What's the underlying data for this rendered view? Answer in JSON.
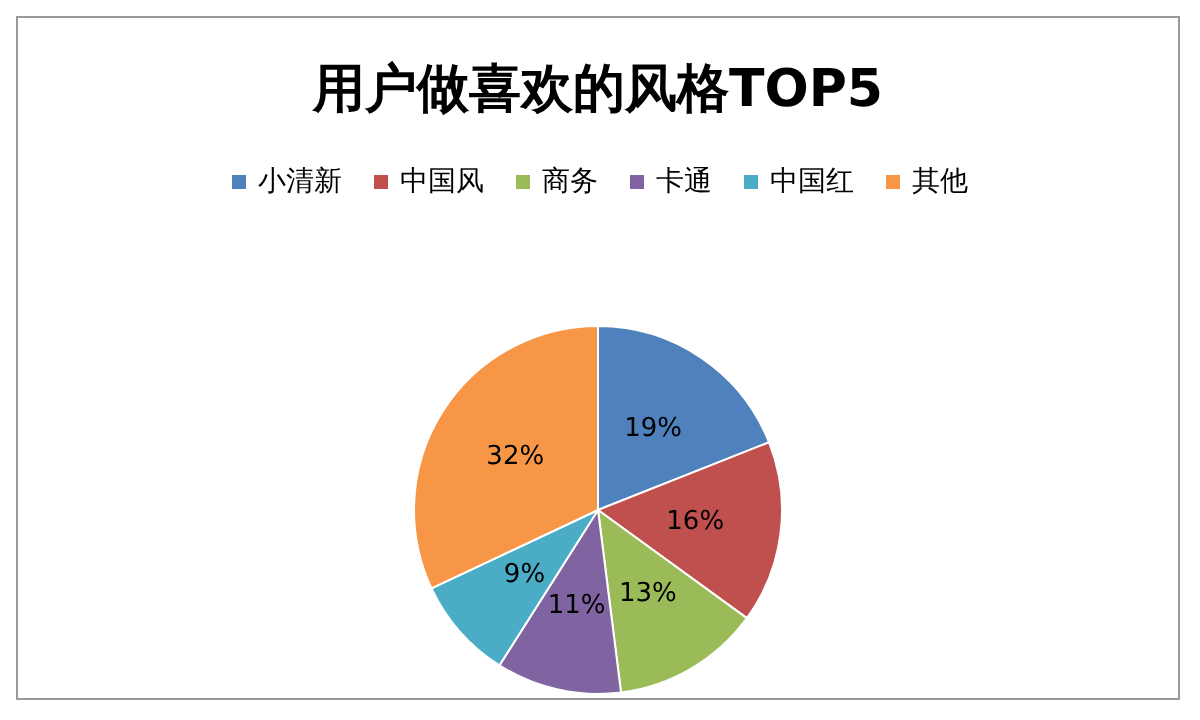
{
  "chart_data": {
    "type": "pie",
    "title": "用户做喜欢的风格TOP5",
    "categories": [
      "小清新",
      "中国风",
      "商务",
      "卡通",
      "中国红",
      "其他"
    ],
    "values": [
      19,
      16,
      13,
      11,
      9,
      32
    ],
    "value_labels": [
      "19%",
      "16%",
      "13%",
      "11%",
      "9%",
      "32%"
    ],
    "colors": [
      "#4f81bd",
      "#c0504d",
      "#9bbb59",
      "#8064a2",
      "#4bacc6",
      "#f79646"
    ],
    "legend": "top"
  }
}
